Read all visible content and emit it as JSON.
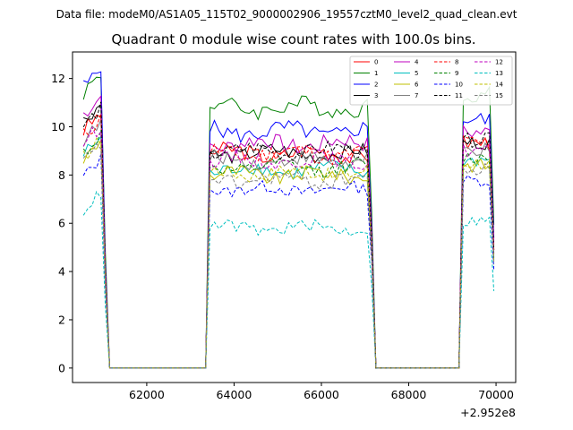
{
  "chart_data": {
    "type": "line",
    "suptitle": "Data file: modeM0/AS1A05_115T02_9000002906_19557cztM0_level2_quad_clean.evt",
    "title": "Quadrant 0 module wise count rates with 100.0s bins.",
    "xlabel": "",
    "ylabel": "",
    "x_offset_label": "+2.952e8",
    "xlim": [
      60300,
      70450
    ],
    "ylim": [
      -0.6,
      13.1
    ],
    "xticks": [
      62000,
      64000,
      66000,
      68000,
      70000
    ],
    "xtick_labels": [
      "62000",
      "64000",
      "66000",
      "68000",
      "70000"
    ],
    "yticks": [
      0,
      2,
      4,
      6,
      8,
      10,
      12
    ],
    "ytick_labels": [
      "0",
      "2",
      "4",
      "6",
      "8",
      "10",
      "12"
    ],
    "legend_location": "upper right",
    "segments": [
      {
        "start": 60550,
        "step": 100,
        "count": 6
      },
      {
        "start": 63450,
        "step": 100,
        "count": 38
      },
      {
        "start": 69250,
        "step": 100,
        "count": 8
      }
    ],
    "baseline_note": "count rate is 0 in the gaps between segments",
    "series": [
      {
        "name": "0",
        "color": "#ff0000",
        "dashed": false,
        "level": 8.9,
        "first_segment_level": 10.2,
        "noise": 0.35
      },
      {
        "name": "1",
        "color": "#008000",
        "dashed": false,
        "level": 10.8,
        "first_segment_level": 11.8,
        "noise": 0.35
      },
      {
        "name": "2",
        "color": "#0000ff",
        "dashed": false,
        "level": 9.8,
        "first_segment_level": 12.0,
        "noise": 0.35
      },
      {
        "name": "3",
        "color": "#000000",
        "dashed": false,
        "level": 8.9,
        "first_segment_level": 10.6,
        "noise": 0.3
      },
      {
        "name": "4",
        "color": "#bf00bf",
        "dashed": false,
        "level": 9.3,
        "first_segment_level": 10.9,
        "noise": 0.35
      },
      {
        "name": "5",
        "color": "#00bfbf",
        "dashed": false,
        "level": 8.2,
        "first_segment_level": 9.2,
        "noise": 0.3
      },
      {
        "name": "6",
        "color": "#bfbf00",
        "dashed": false,
        "level": 8.0,
        "first_segment_level": 9.0,
        "noise": 0.3
      },
      {
        "name": "7",
        "color": "#808080",
        "dashed": false,
        "level": 8.6,
        "first_segment_level": 9.8,
        "noise": 0.3
      },
      {
        "name": "8",
        "color": "#ff0000",
        "dashed": true,
        "level": 8.9,
        "first_segment_level": 10.0,
        "noise": 0.35
      },
      {
        "name": "9",
        "color": "#008000",
        "dashed": true,
        "level": 8.3,
        "first_segment_level": 9.3,
        "noise": 0.3
      },
      {
        "name": "10",
        "color": "#0000ff",
        "dashed": true,
        "level": 7.4,
        "first_segment_level": 8.3,
        "noise": 0.25
      },
      {
        "name": "11",
        "color": "#000000",
        "dashed": true,
        "level": 9.0,
        "first_segment_level": 10.4,
        "noise": 0.3
      },
      {
        "name": "12",
        "color": "#bf00bf",
        "dashed": true,
        "level": 8.6,
        "first_segment_level": 9.7,
        "noise": 0.3
      },
      {
        "name": "13",
        "color": "#00bfbf",
        "dashed": true,
        "level": 5.8,
        "first_segment_level": 6.9,
        "noise": 0.25
      },
      {
        "name": "14",
        "color": "#bfbf00",
        "dashed": true,
        "level": 8.1,
        "first_segment_level": 9.1,
        "noise": 0.3
      },
      {
        "name": "15",
        "color": "#808080",
        "dashed": true,
        "level": 7.8,
        "first_segment_level": 8.9,
        "noise": 0.3
      }
    ]
  }
}
